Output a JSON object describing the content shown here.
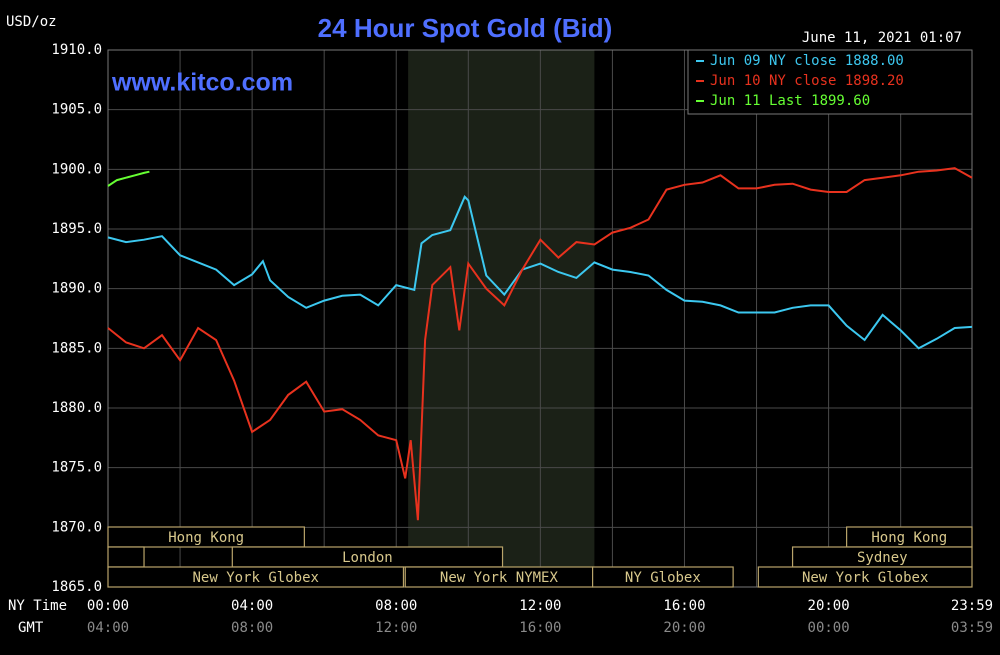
{
  "chart_data": {
    "type": "line",
    "title": "24 Hour Spot Gold (Bid)",
    "watermark": "www.kitco.com",
    "timestamp": "June 11, 2021 01:07",
    "ylabel": "USD/oz",
    "xlabel": "NY Time",
    "secondary_xlabel": "GMT",
    "xlim": [
      0,
      23.98
    ],
    "ylim": [
      1865,
      1910
    ],
    "yticks": [
      {
        "value": 1865,
        "label": "1865.0"
      },
      {
        "value": 1870,
        "label": "1870.0"
      },
      {
        "value": 1875,
        "label": "1875.0"
      },
      {
        "value": 1880,
        "label": "1880.0"
      },
      {
        "value": 1885,
        "label": "1885.0"
      },
      {
        "value": 1890,
        "label": "1890.0"
      },
      {
        "value": 1895,
        "label": "1895.0"
      },
      {
        "value": 1900,
        "label": "1900.0"
      },
      {
        "value": 1905,
        "label": "1905.0"
      },
      {
        "value": 1910,
        "label": "1910.0"
      }
    ],
    "xticks": [
      {
        "value": 0,
        "label": "00:00"
      },
      {
        "value": 4,
        "label": "04:00"
      },
      {
        "value": 8,
        "label": "08:00"
      },
      {
        "value": 12,
        "label": "12:00"
      },
      {
        "value": 16,
        "label": "16:00"
      },
      {
        "value": 20,
        "label": "20:00"
      },
      {
        "value": 23.98,
        "label": "23:59"
      }
    ],
    "secondary_xticks": [
      {
        "value": 0,
        "label": "04:00"
      },
      {
        "value": 4,
        "label": "08:00"
      },
      {
        "value": 8,
        "label": "12:00"
      },
      {
        "value": 12,
        "label": "16:00"
      },
      {
        "value": 16,
        "label": "20:00"
      },
      {
        "value": 20,
        "label": "00:00"
      },
      {
        "value": 23.98,
        "label": "03:59"
      }
    ],
    "xminorticks": [
      2,
      6,
      10,
      14,
      18,
      22
    ],
    "grid": true,
    "shaded_range": [
      8.33,
      13.5
    ],
    "sessions": [
      [
        {
          "label": "Hong Kong",
          "start": 0,
          "end": 5.45
        },
        {
          "label": "Hong Kong",
          "start": 20.5,
          "end": 23.98
        }
      ],
      [
        {
          "start": 0,
          "end": 1
        },
        {
          "label": "London",
          "start": 3.45,
          "end": 10.95
        },
        {
          "label": "Sydney",
          "start": 19,
          "end": 23.98
        }
      ],
      [
        {
          "label": "New York Globex",
          "start": 0,
          "end": 8.2
        },
        {
          "label": "New York NYMEX",
          "start": 8.25,
          "end": 13.45
        },
        {
          "label": "NY Globex",
          "start": 13.45,
          "end": 17.35
        },
        {
          "label": "New York Globex",
          "start": 18.05,
          "end": 23.98
        }
      ]
    ],
    "legend": "top-right",
    "series": [
      {
        "name": "Jun 09 NY close 1888.00",
        "color": "#3cc8f0",
        "x": [
          0,
          0.5,
          1,
          1.5,
          2,
          2.5,
          3,
          3.5,
          4,
          4.3,
          4.5,
          5,
          5.5,
          6,
          6.5,
          7,
          7.5,
          8,
          8.5,
          8.7,
          9,
          9.5,
          9.9,
          10,
          10.5,
          11,
          11.5,
          12,
          12.5,
          13,
          13.5,
          14,
          14.5,
          15,
          15.5,
          16,
          16.5,
          17,
          17.5,
          18,
          18.5,
          19,
          19.5,
          20,
          20.5,
          21,
          21.5,
          22,
          22.5,
          23,
          23.5,
          23.98
        ],
        "values": [
          1894.3,
          1893.9,
          1894.1,
          1894.4,
          1892.8,
          1892.2,
          1891.6,
          1890.3,
          1891.2,
          1892.3,
          1890.7,
          1889.3,
          1888.4,
          1889.0,
          1889.4,
          1889.5,
          1888.6,
          1890.3,
          1889.9,
          1893.8,
          1894.5,
          1894.9,
          1897.7,
          1897.4,
          1891.1,
          1889.5,
          1891.6,
          1892.1,
          1891.4,
          1890.9,
          1892.2,
          1891.6,
          1891.4,
          1891.1,
          1889.9,
          1889.0,
          1888.9,
          1888.6,
          1888.0,
          1888.0,
          1888.0,
          1888.4,
          1888.6,
          1888.6,
          1886.9,
          1885.7,
          1887.8,
          1886.5,
          1885.0,
          1885.8,
          1886.7,
          1886.8
        ]
      },
      {
        "name": "Jun 10 NY close 1898.20",
        "color": "#e8321e",
        "x": [
          0,
          0.5,
          1,
          1.5,
          2,
          2.5,
          3,
          3.5,
          4,
          4.5,
          5,
          5.5,
          6,
          6.5,
          7,
          7.5,
          8,
          8.25,
          8.4,
          8.6,
          8.8,
          9,
          9.5,
          9.75,
          10,
          10.5,
          11,
          11.5,
          12,
          12.5,
          13,
          13.5,
          14,
          14.5,
          15,
          15.5,
          16,
          16.5,
          17,
          17.5,
          18,
          18.5,
          19,
          19.5,
          20,
          20.5,
          21,
          21.5,
          22,
          22.5,
          23,
          23.5,
          23.98
        ],
        "values": [
          1886.7,
          1885.5,
          1885.0,
          1886.1,
          1884.0,
          1886.7,
          1885.7,
          1882.3,
          1878.0,
          1879.0,
          1881.1,
          1882.2,
          1879.7,
          1879.9,
          1879.0,
          1877.7,
          1877.3,
          1874.1,
          1877.3,
          1870.6,
          1885.7,
          1890.3,
          1891.8,
          1886.5,
          1892.1,
          1890.0,
          1888.6,
          1891.6,
          1894.1,
          1892.6,
          1893.9,
          1893.7,
          1894.7,
          1895.1,
          1895.8,
          1898.3,
          1898.7,
          1898.9,
          1899.5,
          1898.4,
          1898.4,
          1898.7,
          1898.8,
          1898.3,
          1898.1,
          1898.1,
          1899.1,
          1899.3,
          1899.5,
          1899.8,
          1899.9,
          1900.1,
          1899.3
        ]
      },
      {
        "name": "Jun 11 Last 1899.60",
        "color": "#66ff33",
        "x": [
          0,
          0.25,
          0.5,
          0.75,
          1,
          1.15
        ],
        "values": [
          1898.6,
          1899.1,
          1899.3,
          1899.5,
          1899.7,
          1899.8
        ]
      }
    ]
  }
}
